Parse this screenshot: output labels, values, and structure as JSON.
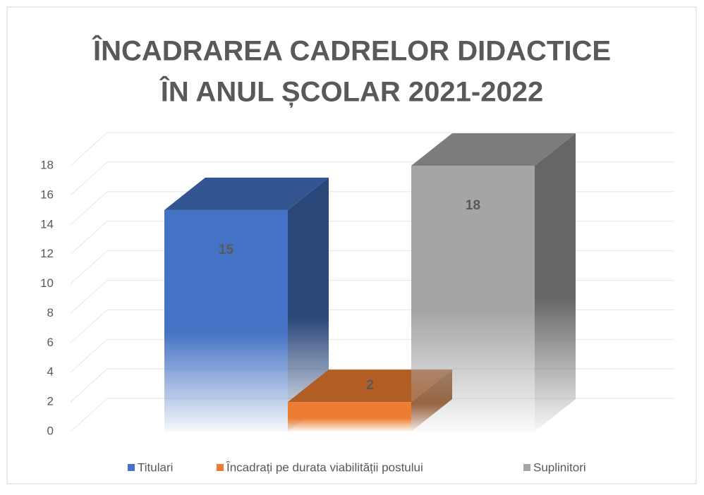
{
  "chart_data": {
    "type": "bar3d",
    "title": [
      "ÎNCADRAREA CADRELOR DIDACTICE",
      "ÎN ANUL ȘCOLAR 2021-2022"
    ],
    "categories": [
      null
    ],
    "series": [
      {
        "name": "Titulari",
        "color": "#4472c4",
        "values": [
          15
        ]
      },
      {
        "name": "Încadrați pe durata viabilității postului",
        "color": "#ed7d31",
        "values": [
          2
        ]
      },
      {
        "name": "Suplinitori",
        "color": "#a5a5a5",
        "values": [
          18
        ]
      }
    ],
    "ylim": [
      0,
      18
    ],
    "yticks": [
      0,
      2,
      4,
      6,
      8,
      10,
      12,
      14,
      16,
      18
    ],
    "grid": true,
    "legend": "bottom"
  }
}
